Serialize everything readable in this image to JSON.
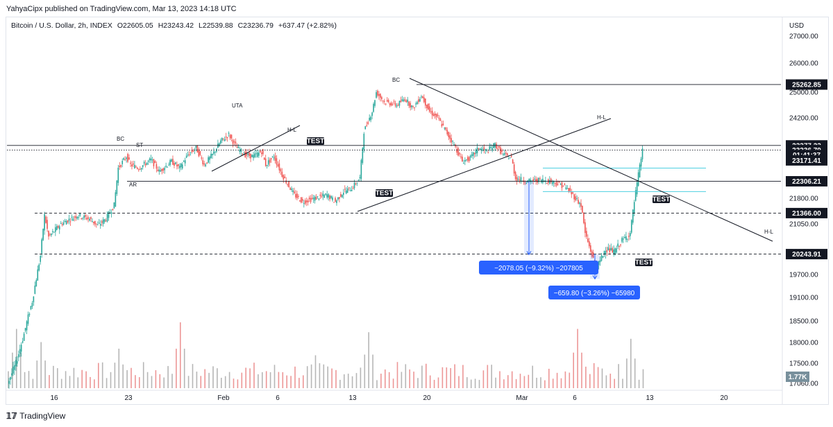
{
  "header": {
    "publisher": "YahyaCipx published on TradingView.com, Mar 13, 2023 14:18 UTC"
  },
  "legend": {
    "symbol": "Bitcoin / U.S. Dollar, 2h, INDEX",
    "open": "O22605.05",
    "high": "H23243.42",
    "low": "L22539.88",
    "close": "C23236.79",
    "change": "+637.47 (+2.82%)"
  },
  "footer": {
    "brand": "TradingView"
  },
  "colors": {
    "up": "#26a69a",
    "down": "#ef5350",
    "label_bg": "#131722",
    "measure": "#2962ff",
    "cyan_line": "#4dd0e1",
    "volume_up": "#9e9e9e",
    "volume_down": "#e57373"
  },
  "chart_data": {
    "type": "candlestick",
    "currency": "USD",
    "y_ticks": [
      "27000.00",
      "26000.00",
      "25000.00",
      "24200.00",
      "21800.00",
      "21050.00",
      "19700.00",
      "19100.00",
      "18500.00",
      "18000.00",
      "17500.00",
      "17060.00"
    ],
    "x_ticks": [
      "16",
      "23",
      "Feb",
      "6",
      "13",
      "20",
      "Mar",
      "6",
      "13",
      "20"
    ],
    "price_path": [
      [
        0,
        17060
      ],
      [
        2,
        17500
      ],
      [
        4,
        18200
      ],
      [
        6,
        19000
      ],
      [
        8,
        20200
      ],
      [
        9,
        21300
      ],
      [
        10,
        20700
      ],
      [
        13,
        21050
      ],
      [
        17,
        21300
      ],
      [
        20,
        21200
      ],
      [
        22,
        21000
      ],
      [
        24,
        21200
      ],
      [
        26,
        21600
      ],
      [
        27,
        22700
      ],
      [
        29,
        23050
      ],
      [
        30,
        22800
      ],
      [
        32,
        22700
      ],
      [
        35,
        22950
      ],
      [
        37,
        22600
      ],
      [
        40,
        22900
      ],
      [
        42,
        22700
      ],
      [
        44,
        23100
      ],
      [
        46,
        23300
      ],
      [
        48,
        22800
      ],
      [
        50,
        23100
      ],
      [
        52,
        23500
      ],
      [
        54,
        23700
      ],
      [
        56,
        23300
      ],
      [
        58,
        23100
      ],
      [
        60,
        23050
      ],
      [
        62,
        23200
      ],
      [
        63,
        22800
      ],
      [
        65,
        23050
      ],
      [
        67,
        22500
      ],
      [
        70,
        21900
      ],
      [
        72,
        21700
      ],
      [
        75,
        21800
      ],
      [
        78,
        21900
      ],
      [
        80,
        21700
      ],
      [
        82,
        22000
      ],
      [
        84,
        22100
      ],
      [
        86,
        22400
      ],
      [
        87,
        23800
      ],
      [
        89,
        24400
      ],
      [
        90,
        25000
      ],
      [
        92,
        24700
      ],
      [
        95,
        24600
      ],
      [
        97,
        24800
      ],
      [
        99,
        24500
      ],
      [
        101,
        24900
      ],
      [
        103,
        24400
      ],
      [
        105,
        24200
      ],
      [
        107,
        23800
      ],
      [
        109,
        23400
      ],
      [
        111,
        22900
      ],
      [
        113,
        23000
      ],
      [
        115,
        23300
      ],
      [
        117,
        23200
      ],
      [
        119,
        23400
      ],
      [
        121,
        23100
      ],
      [
        123,
        23000
      ],
      [
        124,
        22400
      ],
      [
        127,
        22300
      ],
      [
        130,
        22350
      ],
      [
        133,
        22300
      ],
      [
        136,
        22150
      ],
      [
        138,
        21900
      ],
      [
        140,
        21600
      ],
      [
        141,
        20800
      ],
      [
        143,
        20100
      ],
      [
        144,
        19900
      ],
      [
        146,
        20400
      ],
      [
        148,
        20300
      ],
      [
        150,
        20600
      ],
      [
        152,
        20800
      ],
      [
        153,
        21700
      ],
      [
        154,
        22500
      ],
      [
        155,
        23237
      ]
    ],
    "volume_spikes": [
      [
        2,
        0.9
      ],
      [
        8,
        0.7
      ],
      [
        27,
        0.6
      ],
      [
        42,
        1.0
      ],
      [
        75,
        0.5
      ],
      [
        88,
        0.85
      ],
      [
        139,
        0.9
      ],
      [
        152,
        0.75
      ]
    ],
    "horizontal_levels": [
      {
        "price": 25262.85,
        "style": "solid"
      },
      {
        "price": 23377.23,
        "style": "solid"
      },
      {
        "price": 23236.79,
        "style": "dotted"
      },
      {
        "price": 22306.21,
        "style": "solid"
      },
      {
        "price": 21366.0,
        "style": "dashed"
      },
      {
        "price": 20243.91,
        "style": "dashed"
      }
    ],
    "price_tags": [
      {
        "value": "25262.85",
        "price": 25262.85
      },
      {
        "value": "23377.23",
        "price": 23377.23
      },
      {
        "value": "23236.79",
        "price": 23236.79
      },
      {
        "value": "01:41:37",
        "price": 23090
      },
      {
        "value": "23171.41",
        "price": 22930
      },
      {
        "value": "22306.21",
        "price": 22306.21
      },
      {
        "value": "21366.00",
        "price": 21366.0
      },
      {
        "value": "20243.91",
        "price": 20243.91
      }
    ],
    "volume_tag": "1.77K",
    "annotations": [
      {
        "text": "BC",
        "bar": 26,
        "price": 23650
      },
      {
        "text": "ST",
        "bar": 30,
        "price": 23400
      },
      {
        "text": "AR",
        "bar": 28,
        "price": 21950
      },
      {
        "text": "UTA",
        "bar": 53,
        "price": 24600
      },
      {
        "text": "H-L",
        "bar": 65,
        "price": 23800
      },
      {
        "text": "BC",
        "bar": 90,
        "price": 25400
      },
      {
        "text": "H-L",
        "bar": 136,
        "price": 24050
      },
      {
        "text": "H-L",
        "bar": 172,
        "price": 20550
      }
    ],
    "test_labels": [
      {
        "text": "TEST",
        "bar": 70,
        "price": 23550
      },
      {
        "text": "TEST",
        "bar": 86,
        "price": 21820
      },
      {
        "text": "TEST",
        "bar": 148,
        "price": 21650
      },
      {
        "text": "TEST",
        "bar": 144,
        "price": 19950
      }
    ],
    "measurements": [
      {
        "text": "−2078.05 (−9.32%) −207805",
        "from_price": 22306.21,
        "to_price": 20228.16
      },
      {
        "text": "−659.80 (−3.26%) −65980",
        "from_price": 20243.91,
        "to_price": 19584.11
      }
    ]
  }
}
